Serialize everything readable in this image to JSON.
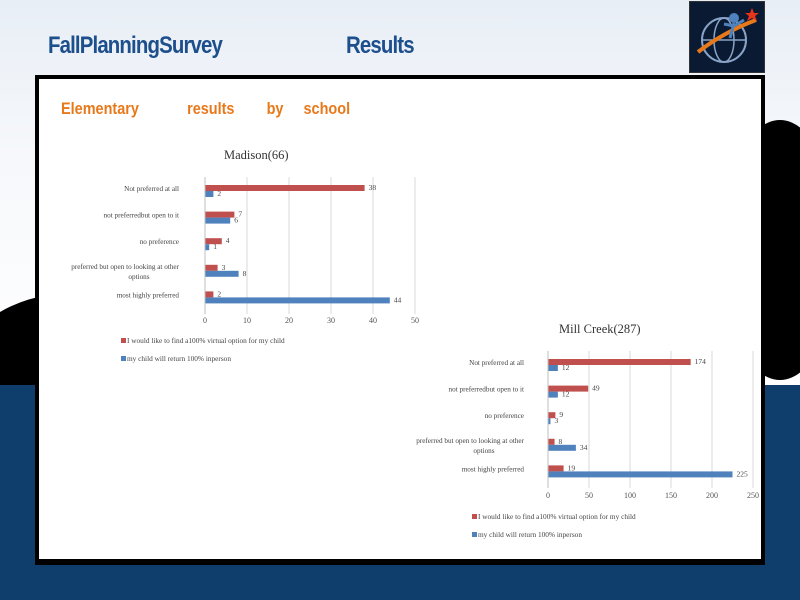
{
  "header": {
    "title_left": "FallPlanningSurvey",
    "title_right": "Results"
  },
  "slide": {
    "title": "Elementary            results        by     school"
  },
  "colors": {
    "red": "#c0504d",
    "blue": "#4f81bd",
    "title_orange": "#e8791b",
    "header_blue": "#1d4f8c"
  },
  "chart_data": [
    {
      "type": "bar",
      "orientation": "horizontal",
      "title": "Madison(66)",
      "categories": [
        "Not preferred      at all",
        "not preferredbut      open   to  it",
        "no  preference",
        "preferred     but  open  to  looking   at other options",
        "most   highly   preferred"
      ],
      "category_lines": [
        [
          "Not preferred      at all"
        ],
        [
          "not  preferredbut      open   to  it"
        ],
        [
          "no  preference"
        ],
        [
          "preferred     but  open  to  looking   at other",
          "options"
        ],
        [
          "most   highly   preferred"
        ]
      ],
      "series": [
        {
          "name": "I would    like  to  find   a100%    virtual   option    for   my  child",
          "color": "#c0504d",
          "values": [
            38,
            7,
            4,
            3,
            2
          ]
        },
        {
          "name": "my  child   will  return    100%   inperson",
          "color": "#4f81bd",
          "values": [
            2,
            6,
            1,
            8,
            44
          ]
        }
      ],
      "xlim": [
        0,
        50
      ],
      "xticks": [
        0,
        10,
        20,
        30,
        40,
        50
      ],
      "grid": true
    },
    {
      "type": "bar",
      "orientation": "horizontal",
      "title": "Mill   Creek(287)",
      "categories": [
        "Not  preferred      at  all",
        "not   preferredbut        open    to   it",
        "no   preference",
        "preferred     but  open  to  looking   at  other options",
        "most   highly   preferred"
      ],
      "category_lines": [
        [
          "Not  preferred      at  all"
        ],
        [
          "not   preferredbut        open    to   it"
        ],
        [
          "no   preference"
        ],
        [
          "preferred     but  open  to  looking   at  other",
          "options"
        ],
        [
          "most   highly   preferred"
        ]
      ],
      "series": [
        {
          "name": "I would    like  to  find   a100%    virtual    option    for   my  child",
          "color": "#c0504d",
          "values": [
            174,
            49,
            9,
            8,
            19
          ]
        },
        {
          "name": "my  child   will  return    100%   inperson",
          "color": "#4f81bd",
          "values": [
            12,
            12,
            3,
            34,
            225
          ]
        }
      ],
      "xlim": [
        0,
        250
      ],
      "xticks": [
        0,
        50,
        100,
        150,
        200,
        250
      ],
      "grid": true
    }
  ]
}
